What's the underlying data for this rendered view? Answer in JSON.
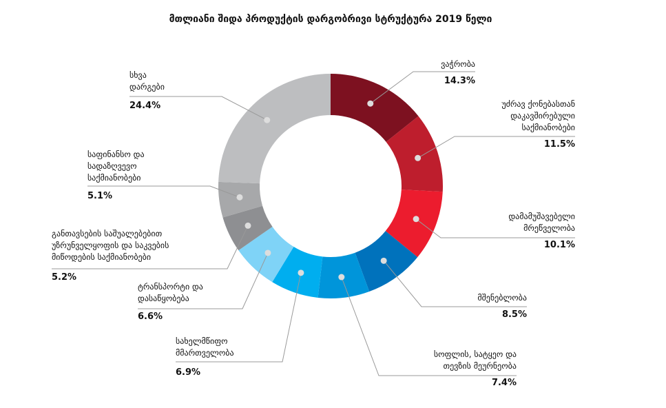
{
  "chart_data": {
    "type": "donut",
    "title": "მთლიანი შიდა პროდუქტის დარგობრივი სტრუქტურა 2019 წელი",
    "categories": [
      [
        "ვაჭრობა"
      ],
      [
        "უძრავ ქონებასთან",
        "დაკავშირებული",
        "საქმიანობები"
      ],
      [
        "დამამუშავებელი",
        "მრეწველობა"
      ],
      [
        "მშენებლობა"
      ],
      [
        "სოფლის, სატყეო და",
        "თევზის მეურნეობა"
      ],
      [
        "სახელმწიფო",
        "მმართველობა"
      ],
      [
        "ტრანსპორტი და",
        "დასაწყობება"
      ],
      [
        "განთავსების საშუალებებით",
        "უზრუნველყოფის და საკვების",
        "მიწოდების საქმიანობები"
      ],
      [
        "საფინანსო და",
        "სადაზღვევო",
        "საქმიანობები"
      ],
      [
        "სხვა",
        "დარგები"
      ]
    ],
    "values": [
      14.3,
      11.5,
      10.1,
      8.5,
      7.4,
      6.9,
      6.6,
      5.2,
      5.1,
      24.4
    ],
    "value_labels": [
      "14.3%",
      "11.5%",
      "10.1%",
      "8.5%",
      "7.4%",
      "6.9%",
      "6.6%",
      "5.2%",
      "5.1%",
      "24.4%"
    ],
    "colors": [
      "#7d1120",
      "#be1e2d",
      "#ec1c2e",
      "#0072bc",
      "#0095da",
      "#00aeef",
      "#7fd3f7",
      "#8e8f92",
      "#a7a8aa",
      "#bdbec0"
    ]
  }
}
